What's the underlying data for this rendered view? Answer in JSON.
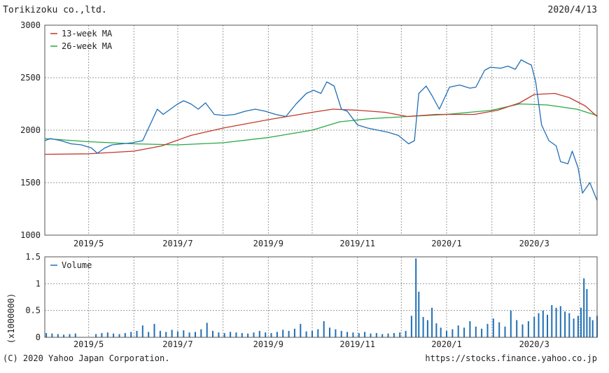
{
  "header": {
    "company": "Torikizoku co.,ltd.",
    "date": "2020/4/13"
  },
  "footer": {
    "copyright": "(C) 2020 Yahoo Japan Corporation.",
    "source_url": "https://stocks.finance.yahoo.co.jp"
  },
  "colors": {
    "price": "#1f6fb5",
    "ma13": "#c0392b",
    "ma26": "#27a845",
    "volume": "#1f6fb5",
    "grid": "#9a9a9a",
    "frame": "#555555"
  },
  "chart_data": [
    {
      "type": "line",
      "title": "",
      "ylim": [
        1000,
        3000
      ],
      "y_ticks": [
        "3000",
        "2500",
        "2000",
        "1500",
        "1000"
      ],
      "x_ticks": [
        "2019/5",
        "2019/7",
        "2019/9",
        "2019/11",
        "2020/1",
        "2020/3"
      ],
      "x_range": [
        "2019-04-01",
        "2020-04-13"
      ],
      "grid": true,
      "legend_position": "top-left",
      "series": [
        {
          "name": "13-week MA",
          "x": [
            "2019-04-01",
            "2019-05-01",
            "2019-06-01",
            "2019-06-20",
            "2019-07-10",
            "2019-08-01",
            "2019-09-01",
            "2019-10-01",
            "2019-10-15",
            "2019-11-01",
            "2019-11-20",
            "2019-12-05",
            "2019-12-25",
            "2020-01-20",
            "2020-02-05",
            "2020-02-20",
            "2020-03-01",
            "2020-03-15",
            "2020-03-25",
            "2020-04-05",
            "2020-04-13"
          ],
          "values": [
            1770,
            1775,
            1800,
            1850,
            1950,
            2020,
            2100,
            2170,
            2200,
            2190,
            2170,
            2130,
            2150,
            2150,
            2190,
            2260,
            2340,
            2350,
            2310,
            2230,
            2130
          ]
        },
        {
          "name": "26-week MA",
          "x": [
            "2019-04-01",
            "2019-05-01",
            "2019-06-01",
            "2019-07-01",
            "2019-08-01",
            "2019-09-01",
            "2019-10-01",
            "2019-10-20",
            "2019-11-10",
            "2019-12-05",
            "2020-01-01",
            "2020-02-01",
            "2020-02-20",
            "2020-03-10",
            "2020-03-30",
            "2020-04-13"
          ],
          "values": [
            1920,
            1890,
            1870,
            1860,
            1880,
            1930,
            2000,
            2080,
            2110,
            2130,
            2150,
            2190,
            2250,
            2240,
            2200,
            2140
          ]
        },
        {
          "name": "",
          "x": [
            "2019-04-01",
            "2019-04-05",
            "2019-04-12",
            "2019-04-19",
            "2019-04-26",
            "2019-05-03",
            "2019-05-07",
            "2019-05-12",
            "2019-05-17",
            "2019-05-24",
            "2019-05-31",
            "2019-06-07",
            "2019-06-12",
            "2019-06-17",
            "2019-06-21",
            "2019-06-26",
            "2019-07-01",
            "2019-07-05",
            "2019-07-10",
            "2019-07-15",
            "2019-07-20",
            "2019-07-26",
            "2019-08-02",
            "2019-08-09",
            "2019-08-16",
            "2019-08-23",
            "2019-08-30",
            "2019-09-06",
            "2019-09-13",
            "2019-09-20",
            "2019-09-27",
            "2019-10-02",
            "2019-10-07",
            "2019-10-11",
            "2019-10-16",
            "2019-10-21",
            "2019-10-25",
            "2019-11-01",
            "2019-11-08",
            "2019-11-15",
            "2019-11-22",
            "2019-11-29",
            "2019-12-06",
            "2019-12-10",
            "2019-12-13",
            "2019-12-18",
            "2019-12-22",
            "2019-12-27",
            "2020-01-03",
            "2020-01-10",
            "2020-01-17",
            "2020-01-21",
            "2020-01-27",
            "2020-01-31",
            "2020-02-07",
            "2020-02-12",
            "2020-02-17",
            "2020-02-21",
            "2020-02-25",
            "2020-02-28",
            "2020-03-02",
            "2020-03-06",
            "2020-03-11",
            "2020-03-16",
            "2020-03-19",
            "2020-03-24",
            "2020-03-27",
            "2020-03-31",
            "2020-04-03",
            "2020-04-08",
            "2020-04-13"
          ],
          "values": [
            1900,
            1920,
            1900,
            1870,
            1860,
            1830,
            1780,
            1830,
            1860,
            1870,
            1880,
            1900,
            2050,
            2200,
            2150,
            2200,
            2250,
            2280,
            2250,
            2200,
            2260,
            2150,
            2140,
            2150,
            2180,
            2200,
            2180,
            2150,
            2130,
            2250,
            2350,
            2380,
            2350,
            2460,
            2420,
            2200,
            2180,
            2050,
            2020,
            2000,
            1980,
            1950,
            1870,
            1900,
            2350,
            2420,
            2330,
            2200,
            2410,
            2430,
            2400,
            2410,
            2570,
            2600,
            2590,
            2610,
            2580,
            2670,
            2640,
            2620,
            2460,
            2050,
            1900,
            1850,
            1700,
            1680,
            1800,
            1640,
            1400,
            1500,
            1330
          ]
        }
      ]
    },
    {
      "type": "bar",
      "title": "",
      "ylabel": "(x1000000)",
      "ylim": [
        0,
        1.5
      ],
      "y_ticks": [
        "1.5",
        "1",
        "0.5",
        "0"
      ],
      "x_ticks": [
        "2019/5",
        "2019/7",
        "2019/9",
        "2019/11",
        "2020/1",
        "2020/3"
      ],
      "legend_position": "top-left",
      "series": [
        {
          "name": "Volume",
          "x": [
            "2019-04-02",
            "2019-04-06",
            "2019-04-10",
            "2019-04-14",
            "2019-04-18",
            "2019-04-22",
            "2019-05-06",
            "2019-05-10",
            "2019-05-14",
            "2019-05-18",
            "2019-05-22",
            "2019-05-26",
            "2019-05-30",
            "2019-06-03",
            "2019-06-07",
            "2019-06-11",
            "2019-06-15",
            "2019-06-19",
            "2019-06-23",
            "2019-06-27",
            "2019-07-01",
            "2019-07-05",
            "2019-07-09",
            "2019-07-13",
            "2019-07-17",
            "2019-07-21",
            "2019-07-25",
            "2019-07-29",
            "2019-08-02",
            "2019-08-06",
            "2019-08-10",
            "2019-08-14",
            "2019-08-18",
            "2019-08-22",
            "2019-08-26",
            "2019-08-30",
            "2019-09-03",
            "2019-09-07",
            "2019-09-11",
            "2019-09-15",
            "2019-09-19",
            "2019-09-23",
            "2019-09-27",
            "2019-10-01",
            "2019-10-05",
            "2019-10-09",
            "2019-10-13",
            "2019-10-17",
            "2019-10-21",
            "2019-10-25",
            "2019-10-29",
            "2019-11-02",
            "2019-11-06",
            "2019-11-10",
            "2019-11-14",
            "2019-11-18",
            "2019-11-22",
            "2019-11-26",
            "2019-11-30",
            "2019-12-04",
            "2019-12-08",
            "2019-12-11",
            "2019-12-13",
            "2019-12-16",
            "2019-12-19",
            "2019-12-22",
            "2019-12-25",
            "2019-12-28",
            "2020-01-01",
            "2020-01-05",
            "2020-01-09",
            "2020-01-13",
            "2020-01-17",
            "2020-01-21",
            "2020-01-25",
            "2020-01-29",
            "2020-02-02",
            "2020-02-06",
            "2020-02-10",
            "2020-02-14",
            "2020-02-18",
            "2020-02-22",
            "2020-02-26",
            "2020-03-01",
            "2020-03-04",
            "2020-03-07",
            "2020-03-10",
            "2020-03-13",
            "2020-03-16",
            "2020-03-19",
            "2020-03-22",
            "2020-03-25",
            "2020-03-28",
            "2020-03-31",
            "2020-04-02",
            "2020-04-04",
            "2020-04-06",
            "2020-04-08",
            "2020-04-10",
            "2020-04-13"
          ],
          "values": [
            0.08,
            0.07,
            0.06,
            0.05,
            0.06,
            0.07,
            0.06,
            0.08,
            0.09,
            0.07,
            0.06,
            0.08,
            0.1,
            0.12,
            0.22,
            0.1,
            0.25,
            0.12,
            0.1,
            0.14,
            0.11,
            0.13,
            0.09,
            0.1,
            0.15,
            0.27,
            0.12,
            0.09,
            0.08,
            0.1,
            0.09,
            0.08,
            0.07,
            0.09,
            0.12,
            0.09,
            0.08,
            0.1,
            0.14,
            0.12,
            0.16,
            0.25,
            0.11,
            0.12,
            0.15,
            0.3,
            0.18,
            0.15,
            0.12,
            0.1,
            0.09,
            0.08,
            0.1,
            0.07,
            0.08,
            0.06,
            0.07,
            0.08,
            0.09,
            0.12,
            0.4,
            1.47,
            0.85,
            0.38,
            0.32,
            0.55,
            0.26,
            0.18,
            0.12,
            0.15,
            0.22,
            0.18,
            0.3,
            0.2,
            0.16,
            0.25,
            0.35,
            0.28,
            0.2,
            0.5,
            0.32,
            0.24,
            0.3,
            0.38,
            0.45,
            0.5,
            0.42,
            0.6,
            0.55,
            0.58,
            0.48,
            0.45,
            0.35,
            0.4,
            0.55,
            1.1,
            0.9,
            0.38,
            0.32,
            0.4
          ]
        }
      ]
    }
  ]
}
